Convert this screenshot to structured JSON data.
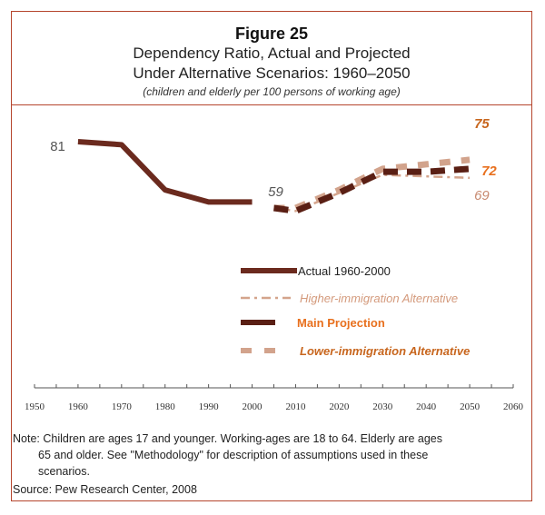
{
  "header": {
    "title": "Figure 25",
    "subtitle_line1": "Dependency Ratio, Actual and Projected",
    "subtitle_line2": "Under Alternative Scenarios: 1960–2050",
    "units": "(children and elderly per 100 persons of working age)"
  },
  "footer": {
    "note_label": "Note:",
    "note_line1": "Children are ages 17 and younger. Working-ages are 18 to 64. Elderly  are ages",
    "note_line2": "65 and older.   See \"Methodology\" for description of assumptions used in these",
    "note_line3": "scenarios.",
    "source": "Source: Pew Research Center, 2008"
  },
  "chart_data": {
    "type": "line",
    "title": "Dependency Ratio, Actual and Projected Under Alternative Scenarios: 1960–2050",
    "subtitle": "(children and elderly per 100 persons of working age)",
    "xlabel": "",
    "ylabel": "",
    "xlim": [
      1950,
      2060
    ],
    "ylim": [
      40,
      95
    ],
    "x_ticks": [
      1950,
      1960,
      1970,
      1980,
      1990,
      2000,
      2010,
      2020,
      2030,
      2040,
      2050,
      2060
    ],
    "grid": false,
    "legend_position": "center-right",
    "series": [
      {
        "name": "Actual 1960-2000",
        "style": "solid",
        "color": "#6b2a1e",
        "x": [
          1960,
          1970,
          1980,
          1990,
          2000
        ],
        "values": [
          81,
          80,
          65,
          61,
          61
        ]
      },
      {
        "name": "Higher-immigration Alternative",
        "style": "dash-dot",
        "color": "#d4a48c",
        "x": [
          2005,
          2010,
          2020,
          2030,
          2040,
          2050
        ],
        "values": [
          59,
          58,
          64,
          70,
          69.5,
          69
        ]
      },
      {
        "name": "Main Projection",
        "style": "dashed-thick",
        "color": "#5a1f14",
        "x": [
          2005,
          2010,
          2020,
          2030,
          2040,
          2050
        ],
        "values": [
          59,
          58,
          64,
          71,
          71,
          72
        ]
      },
      {
        "name": "Lower-immigration Alternative",
        "style": "dashed",
        "color": "#d2a38c",
        "x": [
          2005,
          2010,
          2020,
          2030,
          2040,
          2050
        ],
        "values": [
          59,
          59,
          65,
          72,
          73.5,
          75
        ]
      }
    ],
    "annotations": [
      {
        "text": "81",
        "x": 1960,
        "y": 81,
        "color": "#555555"
      },
      {
        "text": "59",
        "x": 2005,
        "y": 59,
        "color": "#555555"
      },
      {
        "text": "75",
        "x": 2050,
        "y": 75,
        "color": "#c8661e"
      },
      {
        "text": "72",
        "x": 2050,
        "y": 72,
        "color": "#e8701e"
      },
      {
        "text": "69",
        "x": 2050,
        "y": 69,
        "color": "#c88a70"
      }
    ],
    "legend": [
      {
        "label": "Actual 1960-2000",
        "color": "#222222"
      },
      {
        "label": "Higher-immigration Alternative",
        "color": "#d49a7c"
      },
      {
        "label": "Main Projection",
        "color": "#e8701e"
      },
      {
        "label": "Lower-immigration Alternative",
        "color": "#c8661e"
      }
    ]
  }
}
